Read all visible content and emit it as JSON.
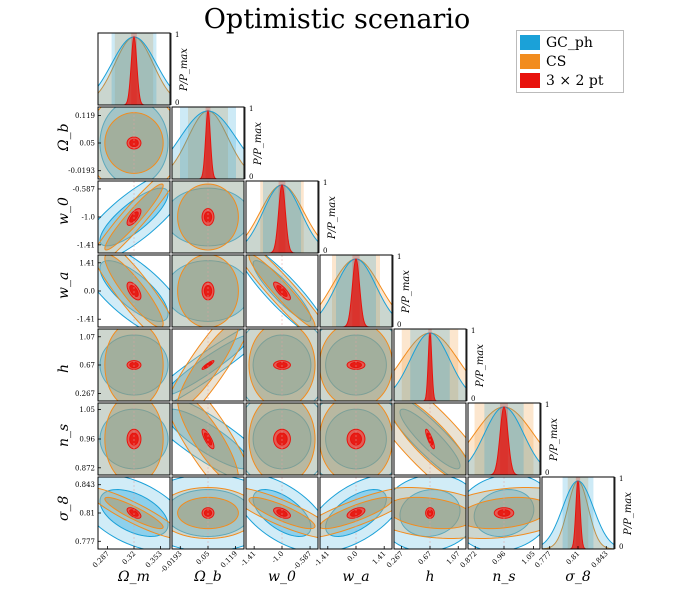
{
  "title": "Optimistic scenario",
  "legend": [
    {
      "label": "GC_ph",
      "color": "#1ba1d8"
    },
    {
      "label": "CS",
      "color": "#f28c1e"
    },
    {
      "label": "3 × 2 pt",
      "color": "#e8120c"
    }
  ],
  "diag_ylabel": "P/P_max",
  "diag_ticks": [
    "0",
    "1"
  ],
  "chart_data": {
    "type": "corner",
    "parameters": [
      {
        "name": "Ω_m",
        "ylabel": "",
        "fid": 0.32,
        "ticks": [
          "0.287",
          "0.32",
          "0.353"
        ],
        "tick_vals": [
          0.287,
          0.32,
          0.353
        ],
        "range": [
          0.275,
          0.365
        ]
      },
      {
        "name": "Ω_b",
        "ylabel": "Ω_b",
        "fid": 0.05,
        "ticks": [
          "-0.0193",
          "0.05",
          "0.119"
        ],
        "tick_vals": [
          -0.0193,
          0.05,
          0.119
        ],
        "range": [
          -0.04,
          0.14
        ]
      },
      {
        "name": "w_0",
        "ylabel": "w_0",
        "fid": -1.0,
        "ticks": [
          "-1.41",
          "-1.0",
          "-0.587"
        ],
        "tick_vals": [
          -1.41,
          -1.0,
          -0.587
        ],
        "range": [
          -1.53,
          -0.47
        ]
      },
      {
        "name": "w_a",
        "ylabel": "w_a",
        "fid": 0.0,
        "ticks": [
          "-1.41",
          "0.0",
          "1.41"
        ],
        "tick_vals": [
          -1.41,
          0.0,
          1.41
        ],
        "range": [
          -1.8,
          1.8
        ]
      },
      {
        "name": "h",
        "ylabel": "h",
        "fid": 0.67,
        "ticks": [
          "0.267",
          "0.67",
          "1.07"
        ],
        "tick_vals": [
          0.267,
          0.67,
          1.07
        ],
        "range": [
          0.16,
          1.18
        ]
      },
      {
        "name": "n_s",
        "ylabel": "n_s",
        "fid": 0.96,
        "ticks": [
          "0.872",
          "0.96",
          "1.05"
        ],
        "tick_vals": [
          0.872,
          0.96,
          1.05
        ],
        "range": [
          0.85,
          1.07
        ]
      },
      {
        "name": "σ_8",
        "ylabel": "σ_8",
        "fid": 0.81,
        "ticks": [
          "0.777",
          "0.81",
          "0.843"
        ],
        "tick_vals": [
          0.777,
          0.81,
          0.843
        ],
        "range": [
          0.768,
          0.852
        ]
      }
    ],
    "probes": [
      {
        "name": "GC_ph",
        "color": "#1ba1d8",
        "sigma": [
          0.028,
          0.07,
          0.28,
          1.0,
          0.28,
          0.06,
          0.018
        ]
      },
      {
        "name": "CS",
        "color": "#f28c1e",
        "sigma": [
          0.024,
          0.05,
          0.32,
          1.2,
          0.4,
          0.09,
          0.012
        ]
      },
      {
        "name": "3 × 2 pt",
        "color": "#e8120c",
        "sigma": [
          0.0035,
          0.006,
          0.05,
          0.18,
          0.025,
          0.012,
          0.0025
        ]
      }
    ],
    "correlations": {
      "GC_ph": {
        "0-2": 0.8,
        "0-3": -0.75,
        "2-3": -0.9,
        "1-4": 0.95,
        "1-5": -0.85,
        "4-5": -0.9,
        "0-6": -0.5,
        "2-6": -0.6,
        "3-6": 0.6,
        "5-6": 0.15,
        "4-6": 0.1
      },
      "CS": {
        "0-2": 0.95,
        "0-3": -0.9,
        "2-3": -0.95,
        "1-4": 0.9,
        "1-5": -0.85,
        "4-5": -0.85,
        "0-6": -0.9,
        "2-6": -0.85,
        "3-6": 0.85,
        "4-6": -0.3,
        "5-6": 0.3
      },
      "3 × 2 pt": {
        "0-2": 0.7,
        "0-3": -0.6,
        "2-3": -0.8,
        "1-4": 0.9,
        "1-5": -0.8,
        "4-5": -0.85,
        "0-6": -0.6,
        "2-6": -0.5,
        "3-6": 0.5
      }
    },
    "contour_levels": [
      "1σ",
      "2σ"
    ],
    "grid": false,
    "legend_position": "top-right"
  }
}
